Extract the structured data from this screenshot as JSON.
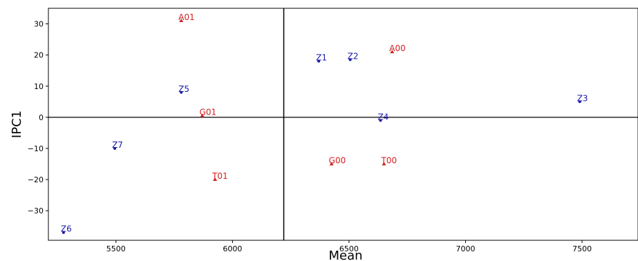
{
  "chart_data": {
    "type": "scatter",
    "xlabel": "Mean",
    "ylabel": "IPC1",
    "xlim": [
      5210,
      7740
    ],
    "ylim": [
      -39.5,
      35
    ],
    "xticks": [
      5500,
      6000,
      6500,
      7000,
      7500
    ],
    "yticks": [
      30,
      20,
      10,
      0,
      -10,
      -20,
      -30
    ],
    "vline": 6220,
    "hline": 0,
    "grid": false,
    "series": [
      {
        "color": "#1a1aa6",
        "marker": "dot",
        "points": [
          {
            "label": "Z1",
            "x": 6370,
            "y": 18
          },
          {
            "label": "Z2",
            "x": 6505,
            "y": 18.5
          },
          {
            "label": "Z3",
            "x": 7490,
            "y": 5
          },
          {
            "label": "Z4",
            "x": 6635,
            "y": -1
          },
          {
            "label": "Z5",
            "x": 5780,
            "y": 8
          },
          {
            "label": "Z6",
            "x": 5275,
            "y": -37
          },
          {
            "label": "Z7",
            "x": 5495,
            "y": -10
          }
        ]
      },
      {
        "color": "#d42020",
        "marker": "triangle",
        "points": [
          {
            "label": "A01",
            "x": 5780,
            "y": 31
          },
          {
            "label": "A00",
            "x": 6685,
            "y": 21
          },
          {
            "label": "G01",
            "x": 5870,
            "y": 0.5
          },
          {
            "label": "G00",
            "x": 6425,
            "y": -15
          },
          {
            "label": "T00",
            "x": 6650,
            "y": -15
          },
          {
            "label": "T01",
            "x": 5925,
            "y": -20
          }
        ]
      }
    ]
  }
}
